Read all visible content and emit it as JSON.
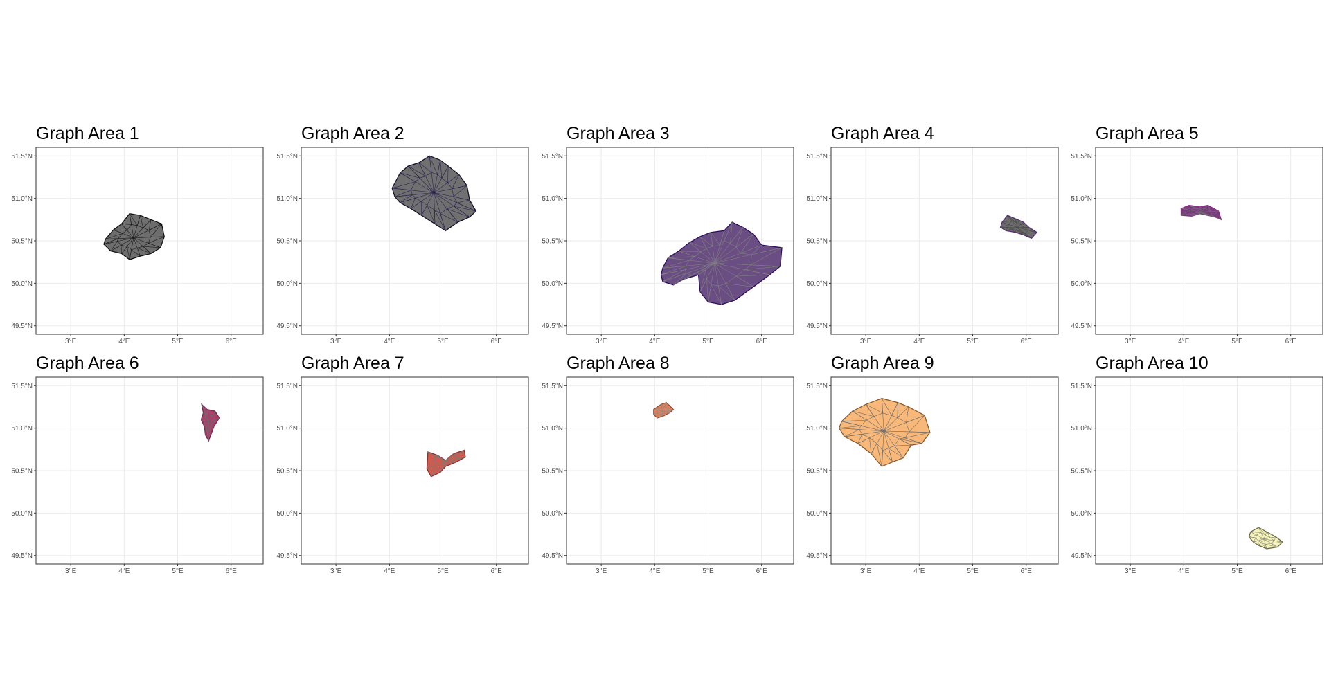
{
  "figure": {
    "layout": {
      "rows": 2,
      "cols": 5
    },
    "x_ticks": [
      "3°E",
      "4°E",
      "5°E",
      "6°E"
    ],
    "y_ticks": [
      "51.5°N",
      "51.0°N",
      "50.5°N",
      "50.0°N",
      "49.5°N"
    ],
    "x_tick_values": [
      3,
      4,
      5,
      6
    ],
    "y_tick_values": [
      51.5,
      51.0,
      50.5,
      50.0,
      49.5
    ],
    "xlim": [
      2.35,
      6.6
    ],
    "ylim": [
      49.4,
      51.6
    ],
    "background": "#ffffff"
  },
  "panels": [
    {
      "title": "Graph Area 1",
      "fill": "#6e6e6e",
      "edge": "#111111",
      "mesh": "#1a1a1a",
      "region": [
        [
          3.65,
          50.52
        ],
        [
          3.8,
          50.63
        ],
        [
          3.95,
          50.7
        ],
        [
          4.1,
          50.82
        ],
        [
          4.3,
          50.8
        ],
        [
          4.5,
          50.75
        ],
        [
          4.7,
          50.7
        ],
        [
          4.75,
          50.55
        ],
        [
          4.68,
          50.42
        ],
        [
          4.5,
          50.35
        ],
        [
          4.3,
          50.32
        ],
        [
          4.1,
          50.28
        ],
        [
          3.95,
          50.35
        ],
        [
          3.75,
          50.38
        ],
        [
          3.62,
          50.46
        ]
      ]
    },
    {
      "title": "Graph Area 2",
      "fill": "#707070",
      "edge": "#14112b",
      "mesh": "#2a2450",
      "region": [
        [
          4.05,
          51.12
        ],
        [
          4.2,
          51.3
        ],
        [
          4.35,
          51.38
        ],
        [
          4.55,
          51.42
        ],
        [
          4.75,
          51.5
        ],
        [
          4.95,
          51.45
        ],
        [
          5.1,
          51.38
        ],
        [
          5.3,
          51.28
        ],
        [
          5.45,
          51.15
        ],
        [
          5.5,
          50.98
        ],
        [
          5.62,
          50.85
        ],
        [
          5.5,
          50.78
        ],
        [
          5.28,
          50.72
        ],
        [
          5.05,
          50.62
        ],
        [
          4.85,
          50.7
        ],
        [
          4.6,
          50.8
        ],
        [
          4.4,
          50.88
        ],
        [
          4.2,
          50.95
        ],
        [
          4.1,
          51.02
        ]
      ]
    },
    {
      "title": "Graph Area 3",
      "fill": "#6a4d82",
      "edge": "#2c0f60",
      "mesh": "#7f7f7f",
      "region": [
        [
          4.15,
          50.18
        ],
        [
          4.25,
          50.3
        ],
        [
          4.45,
          50.38
        ],
        [
          4.65,
          50.48
        ],
        [
          4.85,
          50.55
        ],
        [
          5.05,
          50.6
        ],
        [
          5.3,
          50.62
        ],
        [
          5.45,
          50.72
        ],
        [
          5.65,
          50.66
        ],
        [
          5.85,
          50.58
        ],
        [
          6.0,
          50.45
        ],
        [
          6.38,
          50.42
        ],
        [
          6.35,
          50.2
        ],
        [
          6.15,
          50.1
        ],
        [
          5.85,
          49.96
        ],
        [
          5.5,
          49.8
        ],
        [
          5.25,
          49.75
        ],
        [
          5.0,
          49.78
        ],
        [
          4.85,
          49.9
        ],
        [
          4.82,
          50.1
        ],
        [
          4.55,
          50.05
        ],
        [
          4.35,
          49.98
        ],
        [
          4.15,
          50.02
        ],
        [
          4.12,
          50.1
        ]
      ]
    },
    {
      "title": "Graph Area 4",
      "fill": "#6c6c6c",
      "edge": "#5a2a78",
      "mesh": "#4a4a4a",
      "region": [
        [
          5.55,
          50.72
        ],
        [
          5.65,
          50.8
        ],
        [
          5.8,
          50.76
        ],
        [
          5.95,
          50.72
        ],
        [
          6.05,
          50.66
        ],
        [
          6.2,
          50.6
        ],
        [
          6.1,
          50.53
        ],
        [
          5.95,
          50.57
        ],
        [
          5.8,
          50.6
        ],
        [
          5.62,
          50.62
        ],
        [
          5.52,
          50.66
        ]
      ]
    },
    {
      "title": "Graph Area 5",
      "fill": "#7a3a7e",
      "edge": "#8a2a86",
      "mesh": "#707070",
      "region": [
        [
          3.95,
          50.88
        ],
        [
          4.1,
          50.92
        ],
        [
          4.3,
          50.9
        ],
        [
          4.45,
          50.92
        ],
        [
          4.65,
          50.85
        ],
        [
          4.7,
          50.75
        ],
        [
          4.6,
          50.78
        ],
        [
          4.45,
          50.8
        ],
        [
          4.3,
          50.82
        ],
        [
          4.15,
          50.79
        ],
        [
          3.95,
          50.8
        ]
      ]
    },
    {
      "title": "Graph Area 6",
      "fill": "#b03a6a",
      "edge": "#7a2650",
      "mesh": "#6d6d6d",
      "region": [
        [
          5.45,
          51.28
        ],
        [
          5.55,
          51.22
        ],
        [
          5.7,
          51.2
        ],
        [
          5.78,
          51.12
        ],
        [
          5.68,
          51.02
        ],
        [
          5.62,
          50.92
        ],
        [
          5.58,
          50.85
        ],
        [
          5.52,
          50.92
        ],
        [
          5.5,
          51.02
        ],
        [
          5.44,
          51.1
        ],
        [
          5.48,
          51.18
        ]
      ]
    },
    {
      "title": "Graph Area 7",
      "fill": "#d05a4e",
      "edge": "#8a2f2a",
      "mesh": "#7a7a7a",
      "region": [
        [
          4.72,
          50.72
        ],
        [
          4.9,
          50.68
        ],
        [
          5.05,
          50.62
        ],
        [
          5.2,
          50.7
        ],
        [
          5.4,
          50.74
        ],
        [
          5.42,
          50.66
        ],
        [
          5.25,
          50.6
        ],
        [
          5.05,
          50.55
        ],
        [
          4.95,
          50.48
        ],
        [
          4.78,
          50.43
        ],
        [
          4.7,
          50.52
        ]
      ]
    },
    {
      "title": "Graph Area 8",
      "fill": "#e4805a",
      "edge": "#9a4a30",
      "mesh": "#8a8a8a",
      "region": [
        [
          3.98,
          51.22
        ],
        [
          4.12,
          51.28
        ],
        [
          4.22,
          51.3
        ],
        [
          4.35,
          51.22
        ],
        [
          4.28,
          51.18
        ],
        [
          4.15,
          51.14
        ],
        [
          4.05,
          51.12
        ],
        [
          3.98,
          51.16
        ]
      ]
    },
    {
      "title": "Graph Area 9",
      "fill": "#f7b87a",
      "edge": "#8a5a2a",
      "mesh": "#6a6a6a",
      "region": [
        [
          2.55,
          51.08
        ],
        [
          2.75,
          51.2
        ],
        [
          3.0,
          51.28
        ],
        [
          3.3,
          51.35
        ],
        [
          3.6,
          51.3
        ],
        [
          3.8,
          51.25
        ],
        [
          4.1,
          51.15
        ],
        [
          4.2,
          50.95
        ],
        [
          4.05,
          50.82
        ],
        [
          3.85,
          50.8
        ],
        [
          3.7,
          50.65
        ],
        [
          3.5,
          50.6
        ],
        [
          3.3,
          50.55
        ],
        [
          3.1,
          50.7
        ],
        [
          2.85,
          50.82
        ],
        [
          2.6,
          50.9
        ],
        [
          2.5,
          51.0
        ]
      ]
    },
    {
      "title": "Graph Area 10",
      "fill": "#f5f3b8",
      "edge": "#6a6a4a",
      "mesh": "#8a8a7a",
      "region": [
        [
          5.25,
          49.78
        ],
        [
          5.4,
          49.83
        ],
        [
          5.55,
          49.78
        ],
        [
          5.72,
          49.72
        ],
        [
          5.85,
          49.66
        ],
        [
          5.75,
          49.6
        ],
        [
          5.55,
          49.58
        ],
        [
          5.4,
          49.62
        ],
        [
          5.3,
          49.66
        ],
        [
          5.22,
          49.72
        ]
      ]
    }
  ]
}
